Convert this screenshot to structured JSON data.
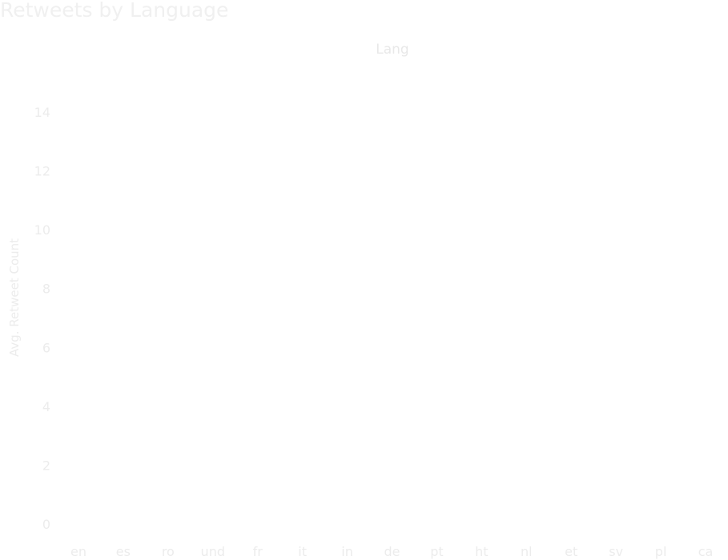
{
  "chart_data": {
    "type": "bar",
    "title": "Retweets by Language",
    "column_header": "Lang",
    "xlabel": "",
    "ylabel": "Avg. Retweet Count",
    "categories": [
      "en",
      "es",
      "ro",
      "und",
      "fr",
      "it",
      "in",
      "de",
      "pt",
      "ht",
      "nl",
      "et",
      "sv",
      "pl",
      "ca"
    ],
    "values": [
      null,
      null,
      null,
      null,
      null,
      null,
      null,
      null,
      null,
      null,
      null,
      null,
      null,
      null,
      null
    ],
    "ylim": [
      0,
      14
    ],
    "yticks": [
      0,
      2,
      4,
      6,
      8,
      10,
      12,
      14
    ],
    "grid": false,
    "legend": "none"
  }
}
